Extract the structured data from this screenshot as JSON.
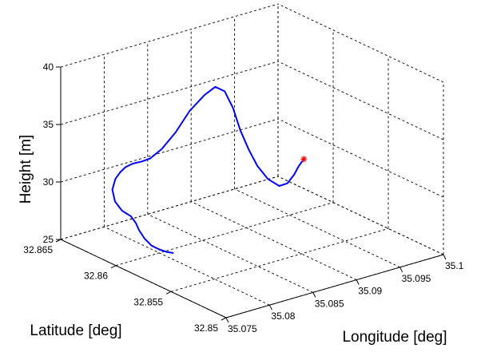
{
  "chart_data": {
    "type": "line3d",
    "title": "",
    "xlabel": "Longitude [deg]",
    "ylabel": "Latitude  [deg]",
    "zlabel": "Height  [m]",
    "grid": true,
    "x_ticks": [
      "35.075",
      "35.08",
      "35.085",
      "35.09",
      "35.095",
      "35.1"
    ],
    "y_ticks": [
      "32.85",
      "32.855",
      "32.86",
      "32.865"
    ],
    "z_ticks": [
      "25",
      "30",
      "35",
      "40"
    ],
    "xlim": [
      35.075,
      35.1
    ],
    "ylim": [
      32.85,
      32.865
    ],
    "zlim": [
      25,
      40
    ],
    "series": [
      {
        "color": "#0000ff",
        "points": [
          {
            "x": 35.081,
            "y": 32.8595,
            "z": 25.0
          },
          {
            "x": 35.0805,
            "y": 32.8597,
            "z": 25.1
          },
          {
            "x": 35.08,
            "y": 32.86,
            "z": 25.3
          },
          {
            "x": 35.0795,
            "y": 32.8603,
            "z": 25.6
          },
          {
            "x": 35.0792,
            "y": 32.8607,
            "z": 26.1
          },
          {
            "x": 35.0792,
            "y": 32.8612,
            "z": 26.6
          },
          {
            "x": 35.0792,
            "y": 32.8615,
            "z": 27.1
          },
          {
            "x": 35.079,
            "y": 32.8618,
            "z": 27.6
          },
          {
            "x": 35.0785,
            "y": 32.8622,
            "z": 28.0
          },
          {
            "x": 35.0782,
            "y": 32.8626,
            "z": 28.7
          },
          {
            "x": 35.0784,
            "y": 32.863,
            "z": 29.5
          },
          {
            "x": 35.079,
            "y": 32.8632,
            "z": 30.2
          },
          {
            "x": 35.0797,
            "y": 32.8633,
            "z": 30.6
          },
          {
            "x": 35.0803,
            "y": 32.8633,
            "z": 30.9
          },
          {
            "x": 35.081,
            "y": 32.8632,
            "z": 31.1
          },
          {
            "x": 35.0818,
            "y": 32.863,
            "z": 31.2
          },
          {
            "x": 35.0825,
            "y": 32.8628,
            "z": 31.4
          },
          {
            "x": 35.0832,
            "y": 32.8623,
            "z": 32.3
          },
          {
            "x": 35.0838,
            "y": 32.8615,
            "z": 34.0
          },
          {
            "x": 35.0845,
            "y": 32.8608,
            "z": 36.0
          },
          {
            "x": 35.0852,
            "y": 32.86,
            "z": 37.6
          },
          {
            "x": 35.0858,
            "y": 32.8595,
            "z": 38.4
          },
          {
            "x": 35.0865,
            "y": 32.8592,
            "z": 38.0
          },
          {
            "x": 35.0872,
            "y": 32.859,
            "z": 36.5
          },
          {
            "x": 35.0878,
            "y": 32.8588,
            "z": 34.5
          },
          {
            "x": 35.0884,
            "y": 32.8585,
            "z": 32.8
          },
          {
            "x": 35.089,
            "y": 32.8582,
            "z": 31.4
          },
          {
            "x": 35.0897,
            "y": 32.8578,
            "z": 30.3
          },
          {
            "x": 35.0905,
            "y": 32.8574,
            "z": 29.7
          },
          {
            "x": 35.0913,
            "y": 32.8573,
            "z": 29.8
          },
          {
            "x": 35.0922,
            "y": 32.8574,
            "z": 30.3
          },
          {
            "x": 35.093,
            "y": 32.8576,
            "z": 30.8
          },
          {
            "x": 35.0937,
            "y": 32.8577,
            "z": 31.2
          }
        ]
      }
    ],
    "markers": [
      {
        "symbol": "*",
        "color": "#ff0000",
        "x": 35.0937,
        "y": 32.8577,
        "z": 31.2
      }
    ]
  }
}
